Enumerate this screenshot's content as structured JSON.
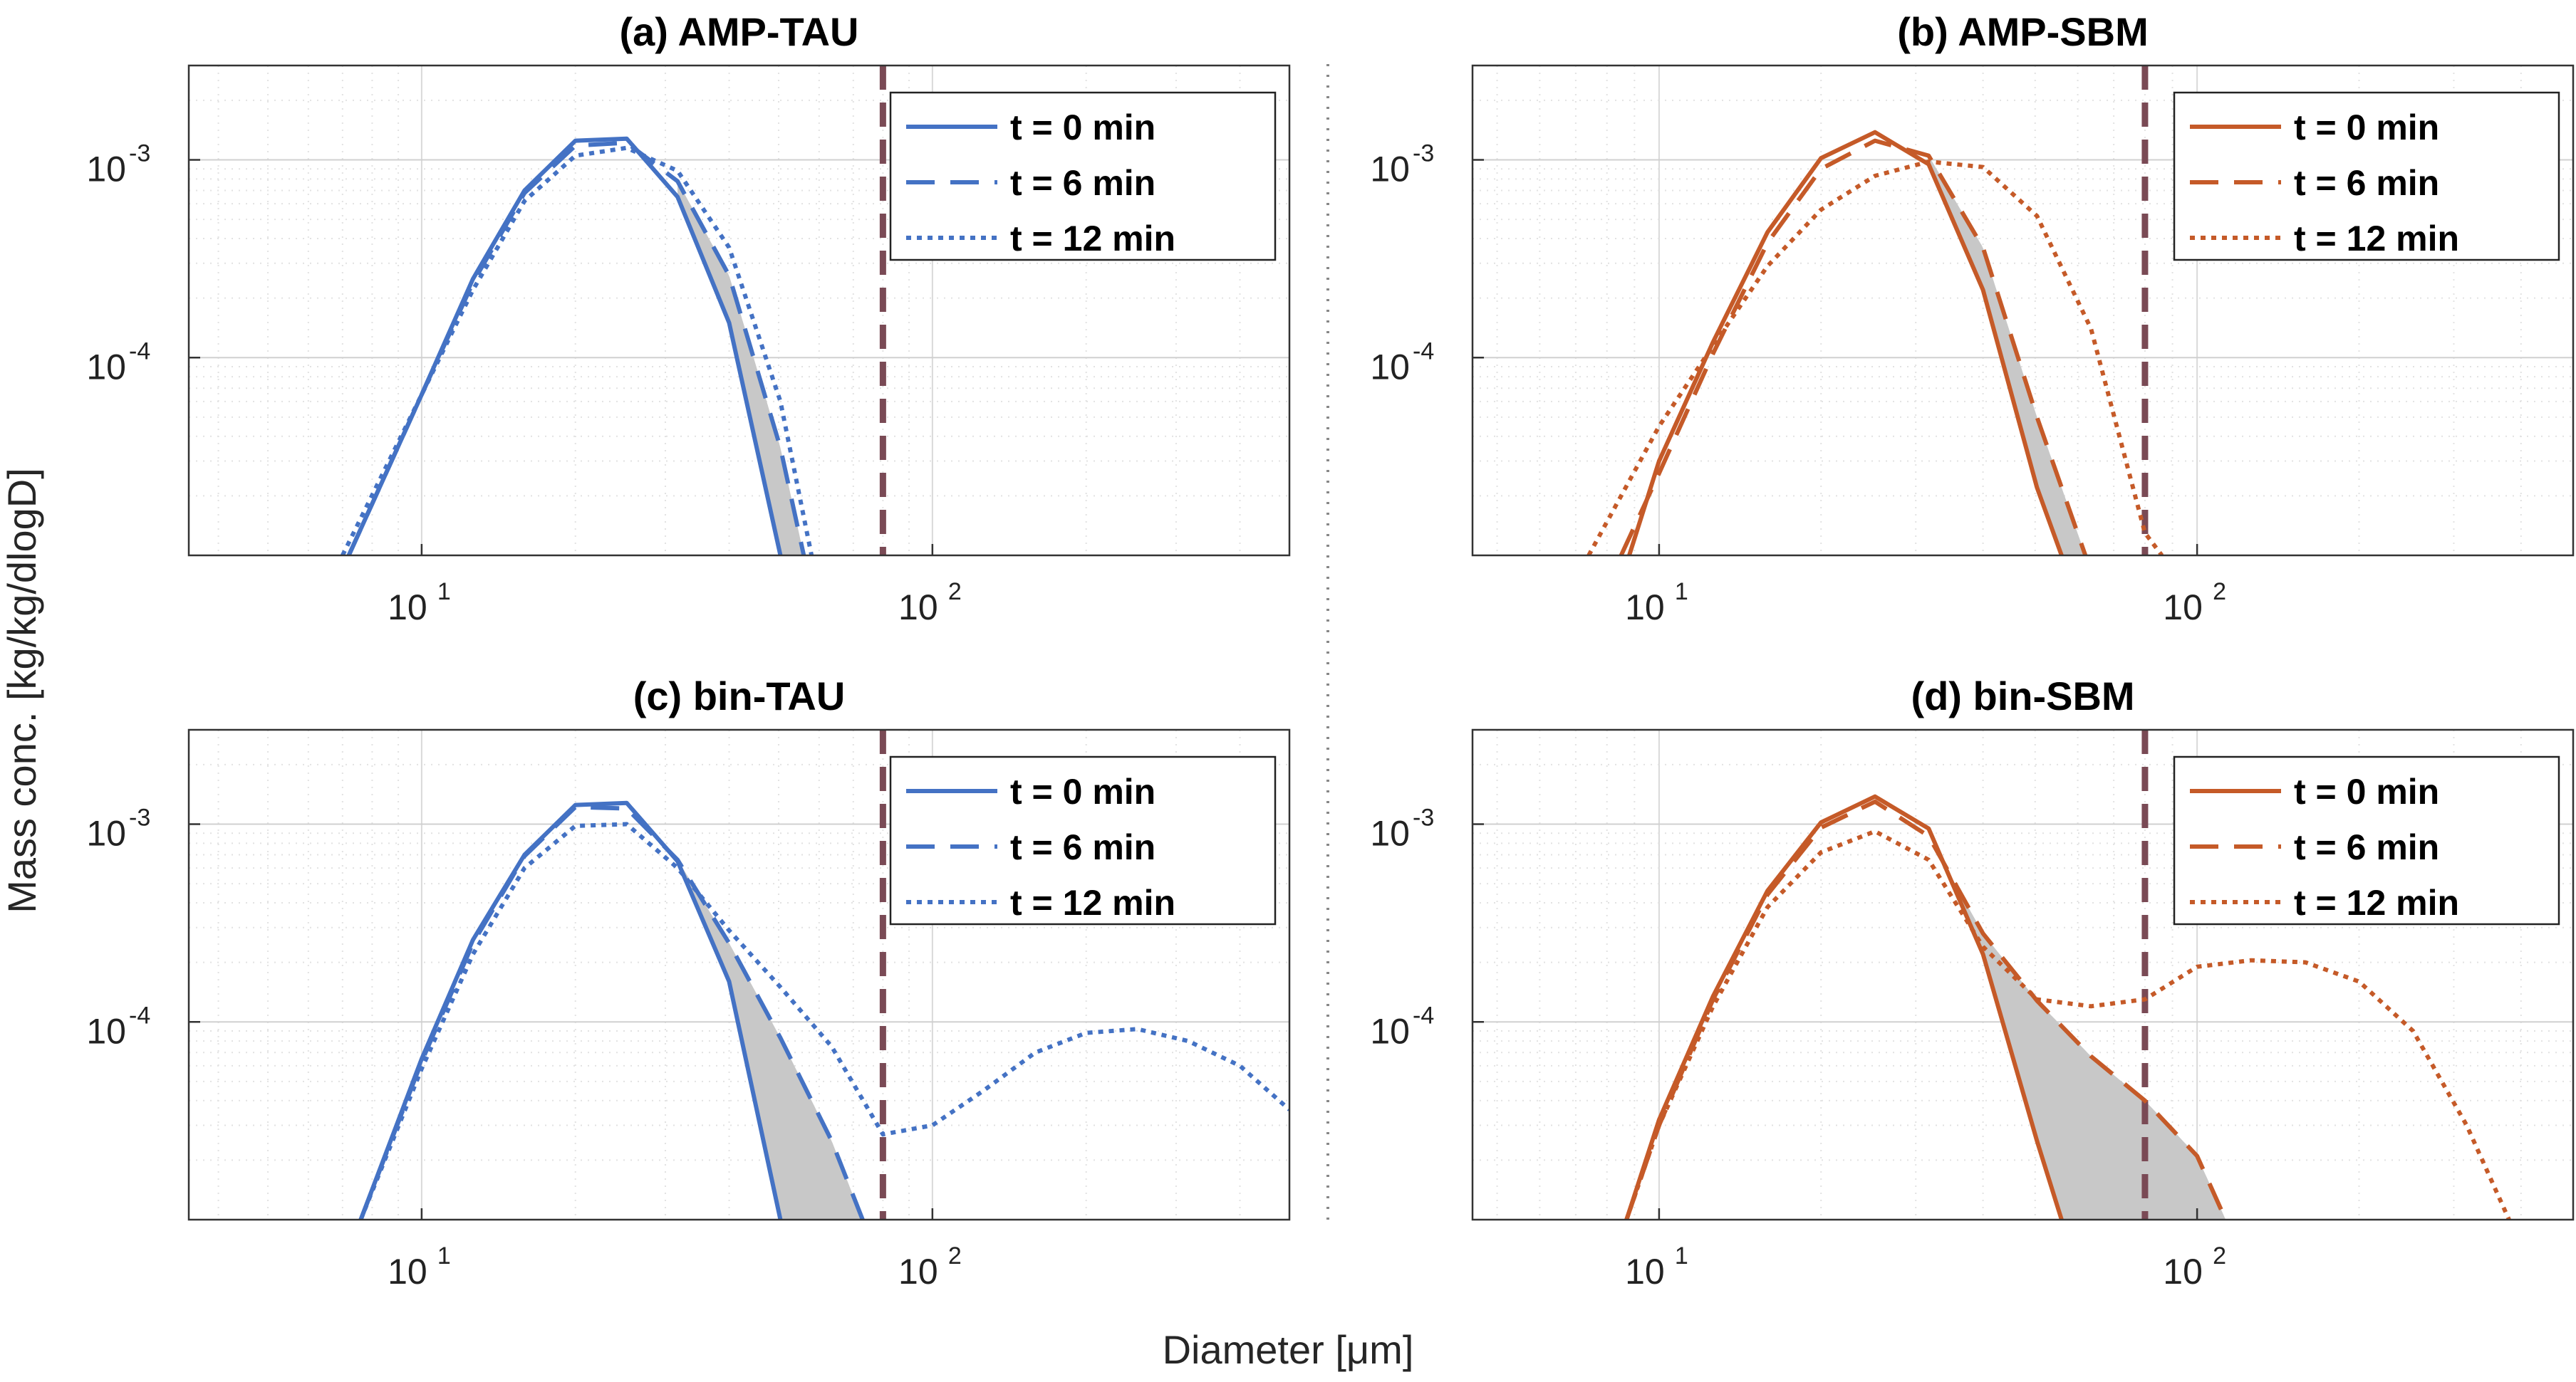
{
  "figure": {
    "xlabel": "Diameter [μm]",
    "ylabel": "Mass conc. [kg/kg/dlogD]"
  },
  "colors": {
    "tau": "#4472C4",
    "sbm": "#C55A28",
    "threshold": "#7A4A55",
    "shade": "#C8C8C8"
  },
  "chart_data": [
    {
      "type": "line",
      "title": "(a) AMP-TAU",
      "xscale": "log",
      "yscale": "log",
      "xlim": [
        3.5,
        500
      ],
      "ylim": [
        1e-05,
        0.003
      ],
      "xticks": [
        {
          "base": "10",
          "exp": "1",
          "value": 10
        },
        {
          "base": "10",
          "exp": "2",
          "value": 100
        }
      ],
      "yticks": [
        {
          "base": "10",
          "exp": "-3",
          "value": 0.001
        },
        {
          "base": "10",
          "exp": "-4",
          "value": 0.0001
        }
      ],
      "threshold_x": 80,
      "grid": true,
      "legend_position": "top-right",
      "series": [
        {
          "name": "t = 0 min",
          "color": "tau",
          "style": "solid",
          "x": [
            7.2,
            10,
            12.6,
            15.9,
            20,
            25.2,
            31.7,
            40,
            50.4
          ],
          "y": [
            1e-05,
            6.5e-05,
            0.00025,
            0.0007,
            0.00125,
            0.00128,
            0.00065,
            0.00015,
            1e-05
          ]
        },
        {
          "name": "t = 6 min",
          "color": "tau",
          "style": "dashed",
          "x": [
            7.2,
            10,
            12.6,
            15.9,
            20,
            25.2,
            31.7,
            40,
            50.4,
            56
          ],
          "y": [
            1e-05,
            6.5e-05,
            0.00024,
            0.00068,
            0.00118,
            0.00122,
            0.00078,
            0.00026,
            3.5e-05,
            1e-05
          ]
        },
        {
          "name": "t = 12 min",
          "color": "tau",
          "style": "dotted",
          "x": [
            7.0,
            10,
            12.6,
            15.9,
            20,
            25.2,
            31.7,
            40,
            50.4,
            58
          ],
          "y": [
            1e-05,
            6.5e-05,
            0.00022,
            0.00062,
            0.00105,
            0.00115,
            0.00088,
            0.00036,
            6e-05,
            1e-05
          ]
        }
      ]
    },
    {
      "type": "line",
      "title": "(b) AMP-SBM",
      "xscale": "log",
      "yscale": "log",
      "xlim": [
        4.5,
        500
      ],
      "ylim": [
        1e-05,
        0.003
      ],
      "xticks": [
        {
          "base": "10",
          "exp": "1",
          "value": 10
        },
        {
          "base": "10",
          "exp": "2",
          "value": 100
        }
      ],
      "yticks": [
        {
          "base": "10",
          "exp": "-3",
          "value": 0.001
        },
        {
          "base": "10",
          "exp": "-4",
          "value": 0.0001
        }
      ],
      "threshold_x": 80,
      "grid": true,
      "legend_position": "top-right",
      "series": [
        {
          "name": "t = 0 min",
          "color": "sbm",
          "style": "solid",
          "x": [
            8.8,
            10,
            12.6,
            15.9,
            20,
            25.2,
            31.7,
            40,
            50.4,
            56
          ],
          "y": [
            1e-05,
            3e-05,
            0.00012,
            0.00043,
            0.00102,
            0.00138,
            0.00095,
            0.00022,
            2.2e-05,
            1e-05
          ]
        },
        {
          "name": "t = 6 min",
          "color": "sbm",
          "style": "dashed",
          "x": [
            8.5,
            10,
            12.6,
            15.9,
            20,
            25.2,
            31.7,
            40,
            50.4,
            62
          ],
          "y": [
            1e-05,
            2.6e-05,
            0.000105,
            0.00038,
            0.0009,
            0.00125,
            0.00105,
            0.00036,
            5e-05,
            1e-05
          ]
        },
        {
          "name": "t = 12 min",
          "color": "sbm",
          "style": "dotted",
          "x": [
            7.4,
            10,
            12.6,
            15.9,
            20,
            25.2,
            31.7,
            40,
            50.4,
            63.5,
            80,
            86
          ],
          "y": [
            1e-05,
            4.5e-05,
            0.000115,
            0.00029,
            0.00056,
            0.00083,
            0.00098,
            0.00092,
            0.00052,
            0.00014,
            1.3e-05,
            1e-05
          ]
        }
      ]
    },
    {
      "type": "line",
      "title": "(c) bin-TAU",
      "xscale": "log",
      "yscale": "log",
      "xlim": [
        3.5,
        500
      ],
      "ylim": [
        1e-05,
        0.003
      ],
      "xticks": [
        {
          "base": "10",
          "exp": "1",
          "value": 10
        },
        {
          "base": "10",
          "exp": "2",
          "value": 100
        }
      ],
      "yticks": [
        {
          "base": "10",
          "exp": "-3",
          "value": 0.001
        },
        {
          "base": "10",
          "exp": "-4",
          "value": 0.0001
        }
      ],
      "threshold_x": 80,
      "grid": true,
      "legend_position": "top-right",
      "series": [
        {
          "name": "t = 0 min",
          "color": "tau",
          "style": "solid",
          "x": [
            7.6,
            10,
            12.6,
            15.9,
            20,
            25.2,
            31.7,
            40,
            50.4
          ],
          "y": [
            1e-05,
            6.5e-05,
            0.00026,
            0.0007,
            0.00125,
            0.00128,
            0.00065,
            0.00016,
            1e-05
          ]
        },
        {
          "name": "t = 6 min",
          "color": "tau",
          "style": "dashed",
          "x": [
            7.6,
            10,
            12.6,
            15.9,
            20,
            25.2,
            31.7,
            40,
            50.4,
            63.5,
            73
          ],
          "y": [
            1e-05,
            6.3e-05,
            0.00025,
            0.00069,
            0.00122,
            0.0012,
            0.00066,
            0.00025,
            8.3e-05,
            2.5e-05,
            1e-05
          ]
        },
        {
          "name": "t = 12 min",
          "color": "tau",
          "style": "dotted",
          "x": [
            7.6,
            10,
            12.6,
            15.9,
            20,
            25.2,
            31.7,
            40,
            50.4,
            63.5,
            80,
            100,
            126,
            159,
            200,
            252,
            317,
            400,
            500
          ],
          "y": [
            1e-05,
            5.8e-05,
            0.00022,
            0.0006,
            0.00098,
            0.001,
            0.0006,
            0.00029,
            0.00015,
            7.5e-05,
            2.7e-05,
            3e-05,
            4.5e-05,
            7e-05,
            8.8e-05,
            9.2e-05,
            8e-05,
            6e-05,
            3.6e-05
          ]
        }
      ]
    },
    {
      "type": "line",
      "title": "(d) bin-SBM",
      "xscale": "log",
      "yscale": "log",
      "xlim": [
        4.5,
        500
      ],
      "ylim": [
        1e-05,
        0.003
      ],
      "xticks": [
        {
          "base": "10",
          "exp": "1",
          "value": 10
        },
        {
          "base": "10",
          "exp": "2",
          "value": 100
        }
      ],
      "yticks": [
        {
          "base": "10",
          "exp": "-3",
          "value": 0.001
        },
        {
          "base": "10",
          "exp": "-4",
          "value": 0.0001
        }
      ],
      "threshold_x": 80,
      "grid": true,
      "legend_position": "top-right",
      "series": [
        {
          "name": "t = 0 min",
          "color": "sbm",
          "style": "solid",
          "x": [
            8.7,
            10,
            12.6,
            15.9,
            20,
            25.2,
            31.7,
            40,
            50.4,
            56
          ],
          "y": [
            1e-05,
            3.2e-05,
            0.000135,
            0.00046,
            0.00102,
            0.00138,
            0.00095,
            0.00022,
            2.5e-05,
            1e-05
          ]
        },
        {
          "name": "t = 6 min",
          "color": "sbm",
          "style": "dashed",
          "x": [
            8.7,
            10,
            12.6,
            15.9,
            20,
            25.2,
            31.7,
            40,
            50.4,
            63.5,
            80,
            100,
            113
          ],
          "y": [
            1e-05,
            3e-05,
            0.00013,
            0.00044,
            0.00096,
            0.0013,
            0.00087,
            0.00028,
            0.000128,
            6.7e-05,
            4e-05,
            2.1e-05,
            1e-05
          ]
        },
        {
          "name": "t = 12 min",
          "color": "sbm",
          "style": "dotted",
          "x": [
            8.7,
            10,
            12.6,
            15.9,
            20,
            25.2,
            31.7,
            40,
            50.4,
            63.5,
            80,
            100,
            126,
            159,
            200,
            252,
            317,
            380
          ],
          "y": [
            1e-05,
            3e-05,
            0.00012,
            0.00038,
            0.00072,
            0.00092,
            0.00066,
            0.00024,
            0.00013,
            0.00012,
            0.00013,
            0.00019,
            0.000205,
            0.0002,
            0.00016,
            9e-05,
            3e-05,
            1e-05
          ]
        }
      ]
    }
  ]
}
